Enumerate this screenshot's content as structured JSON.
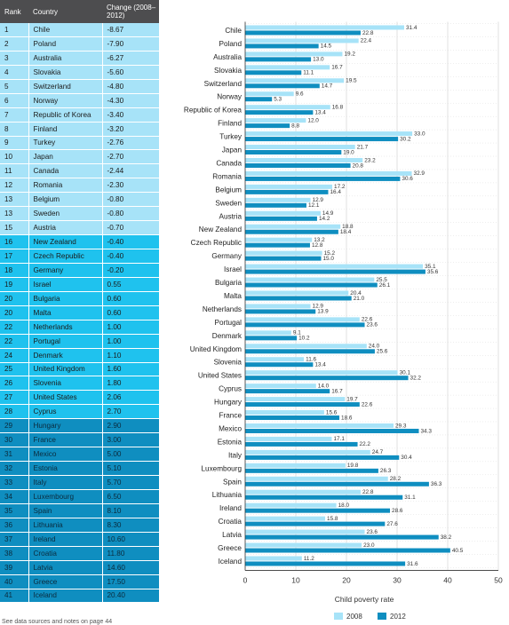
{
  "table": {
    "headers": {
      "rank": "Rank",
      "country": "Country",
      "change": "Change (2008–2012)"
    },
    "rows": [
      {
        "rank": "1",
        "country": "Chile",
        "change": "-8.67",
        "group": 1
      },
      {
        "rank": "2",
        "country": "Poland",
        "change": "-7.90",
        "group": 1
      },
      {
        "rank": "3",
        "country": "Australia",
        "change": "-6.27",
        "group": 1
      },
      {
        "rank": "4",
        "country": "Slovakia",
        "change": "-5.60",
        "group": 1
      },
      {
        "rank": "5",
        "country": "Switzerland",
        "change": "-4.80",
        "group": 1
      },
      {
        "rank": "6",
        "country": "Norway",
        "change": "-4.30",
        "group": 1
      },
      {
        "rank": "7",
        "country": "Republic of Korea",
        "change": "-3.40",
        "group": 1
      },
      {
        "rank": "8",
        "country": "Finland",
        "change": "-3.20",
        "group": 1
      },
      {
        "rank": "9",
        "country": "Turkey",
        "change": "-2.76",
        "group": 1
      },
      {
        "rank": "10",
        "country": "Japan",
        "change": "-2.70",
        "group": 1
      },
      {
        "rank": "11",
        "country": "Canada",
        "change": "-2.44",
        "group": 1
      },
      {
        "rank": "12",
        "country": "Romania",
        "change": "-2.30",
        "group": 1
      },
      {
        "rank": "13",
        "country": "Belgium",
        "change": "-0.80",
        "group": 1
      },
      {
        "rank": "13",
        "country": "Sweden",
        "change": "-0.80",
        "group": 1
      },
      {
        "rank": "15",
        "country": "Austria",
        "change": "-0.70",
        "group": 1
      },
      {
        "rank": "16",
        "country": "New Zealand",
        "change": "-0.40",
        "group": 2
      },
      {
        "rank": "17",
        "country": "Czech Republic",
        "change": "-0.40",
        "group": 2
      },
      {
        "rank": "18",
        "country": "Germany",
        "change": "-0.20",
        "group": 2
      },
      {
        "rank": "19",
        "country": "Israel",
        "change": "0.55",
        "group": 2
      },
      {
        "rank": "20",
        "country": "Bulgaria",
        "change": "0.60",
        "group": 2
      },
      {
        "rank": "20",
        "country": "Malta",
        "change": "0.60",
        "group": 2
      },
      {
        "rank": "22",
        "country": "Netherlands",
        "change": "1.00",
        "group": 2
      },
      {
        "rank": "22",
        "country": "Portugal",
        "change": "1.00",
        "group": 2
      },
      {
        "rank": "24",
        "country": "Denmark",
        "change": "1.10",
        "group": 2
      },
      {
        "rank": "25",
        "country": "United Kingdom",
        "change": "1.60",
        "group": 2
      },
      {
        "rank": "26",
        "country": "Slovenia",
        "change": "1.80",
        "group": 2
      },
      {
        "rank": "27",
        "country": "United States",
        "change": "2.06",
        "group": 2
      },
      {
        "rank": "28",
        "country": "Cyprus",
        "change": "2.70",
        "group": 2
      },
      {
        "rank": "29",
        "country": "Hungary",
        "change": "2.90",
        "group": 3
      },
      {
        "rank": "30",
        "country": "France",
        "change": "3.00",
        "group": 3
      },
      {
        "rank": "31",
        "country": "Mexico",
        "change": "5.00",
        "group": 3
      },
      {
        "rank": "32",
        "country": "Estonia",
        "change": "5.10",
        "group": 3
      },
      {
        "rank": "33",
        "country": "Italy",
        "change": "5.70",
        "group": 3
      },
      {
        "rank": "34",
        "country": "Luxembourg",
        "change": "6.50",
        "group": 3
      },
      {
        "rank": "35",
        "country": "Spain",
        "change": "8.10",
        "group": 3
      },
      {
        "rank": "36",
        "country": "Lithuania",
        "change": "8.30",
        "group": 3
      },
      {
        "rank": "37",
        "country": "Ireland",
        "change": "10.60",
        "group": 3
      },
      {
        "rank": "38",
        "country": "Croatia",
        "change": "11.80",
        "group": 3
      },
      {
        "rank": "39",
        "country": "Latvia",
        "change": "14.60",
        "group": 3
      },
      {
        "rank": "40",
        "country": "Greece",
        "change": "17.50",
        "group": 3
      },
      {
        "rank": "41",
        "country": "Iceland",
        "change": "20.40",
        "group": 3
      }
    ]
  },
  "colors": {
    "series_2008": "#a7e3f8",
    "series_2012": "#0f8ec0",
    "gridline": "#cfcfcf",
    "axis": "#333333"
  },
  "footnote": "See data sources and notes on page 44",
  "chart_data": {
    "type": "bar",
    "orientation": "horizontal",
    "xlabel": "Child poverty rate",
    "xlim": [
      0,
      50
    ],
    "xticks": [
      0,
      10,
      20,
      30,
      40,
      50
    ],
    "grid": "vertical, dotted",
    "legend_placement": "bottom-right",
    "categories": [
      "Chile",
      "Poland",
      "Australia",
      "Slovakia",
      "Switzerland",
      "Norway",
      "Republic of Korea",
      "Finland",
      "Turkey",
      "Japan",
      "Canada",
      "Romania",
      "Belgium",
      "Sweden",
      "Austria",
      "New Zealand",
      "Czech Republic",
      "Germany",
      "Israel",
      "Bulgaria",
      "Malta",
      "Netherlands",
      "Portugal",
      "Denmark",
      "United Kingdom",
      "Slovenia",
      "United States",
      "Cyprus",
      "Hungary",
      "France",
      "Mexico",
      "Estonia",
      "Italy",
      "Luxembourg",
      "Spain",
      "Lithuania",
      "Ireland",
      "Croatia",
      "Latvia",
      "Greece",
      "Iceland"
    ],
    "series": [
      {
        "name": "2008",
        "values": [
          31.4,
          22.4,
          19.2,
          16.7,
          19.5,
          9.6,
          16.8,
          12.0,
          33.0,
          21.7,
          23.2,
          32.9,
          17.2,
          12.9,
          14.9,
          18.8,
          13.2,
          15.2,
          35.1,
          25.5,
          20.4,
          12.9,
          22.6,
          9.1,
          24.0,
          11.6,
          30.1,
          14.0,
          19.7,
          15.6,
          29.3,
          17.1,
          24.7,
          19.8,
          28.2,
          22.8,
          18.0,
          15.8,
          23.6,
          23.0,
          11.2
        ]
      },
      {
        "name": "2012",
        "values": [
          22.8,
          14.5,
          13.0,
          11.1,
          14.7,
          5.3,
          13.4,
          8.8,
          30.2,
          19.0,
          20.8,
          30.6,
          16.4,
          12.1,
          14.2,
          18.4,
          12.8,
          15.0,
          35.6,
          26.1,
          21.0,
          13.9,
          23.6,
          10.2,
          25.6,
          13.4,
          32.2,
          16.7,
          22.6,
          18.6,
          34.3,
          22.2,
          30.4,
          26.3,
          36.3,
          31.1,
          28.6,
          27.6,
          38.2,
          40.5,
          31.6
        ]
      }
    ]
  }
}
